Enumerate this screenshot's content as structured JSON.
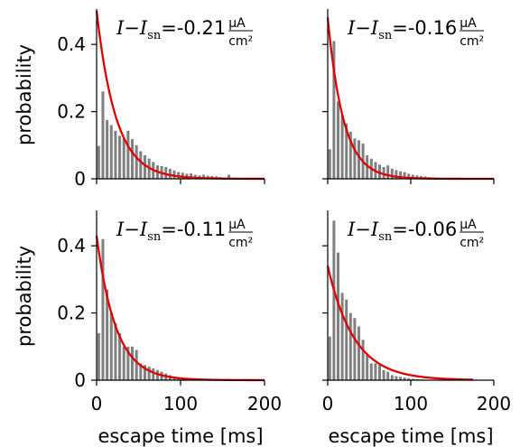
{
  "chart_data": [
    {
      "type": "bar",
      "annotation": {
        "symbol": "I",
        "minus": "−",
        "symbol2": "I",
        "subscript": "sn",
        "value": "=-0.21",
        "unit_num": "μA",
        "unit_den": "cm²"
      },
      "xlabel": "",
      "ylabel": "probability",
      "xlim": [
        0,
        200
      ],
      "ylim": [
        0,
        0.5
      ],
      "xticks": [
        0,
        100,
        200
      ],
      "yticks": [
        0,
        0.2,
        0.4
      ],
      "xticklabels": [
        "",
        "",
        ""
      ],
      "yticklabels": [
        "0",
        "0.2",
        "0.4"
      ],
      "bin_width": 5,
      "bars": [
        0.098,
        0.26,
        0.175,
        0.16,
        0.143,
        0.128,
        0.12,
        0.143,
        0.118,
        0.1,
        0.082,
        0.07,
        0.06,
        0.05,
        0.04,
        0.038,
        0.035,
        0.03,
        0.025,
        0.02,
        0.018,
        0.015,
        0.016,
        0.012,
        0.01,
        0.012,
        0.009,
        0.008,
        0.007,
        0.005,
        0.004,
        0.012,
        0.003,
        0.002,
        0.002,
        0.001,
        0.001,
        0.001
      ],
      "fit": {
        "amplitude": 0.5,
        "tau": 23,
        "color": "#e00000"
      }
    },
    {
      "type": "bar",
      "annotation": {
        "symbol": "I",
        "minus": "−",
        "symbol2": "I",
        "subscript": "sn",
        "value": "=-0.16",
        "unit_num": "μA",
        "unit_den": "cm²"
      },
      "xlabel": "",
      "ylabel": "",
      "xlim": [
        0,
        200
      ],
      "ylim": [
        0,
        0.5
      ],
      "xticks": [
        0,
        100,
        200
      ],
      "yticks": [
        0,
        0.2,
        0.4
      ],
      "xticklabels": [
        "",
        "",
        ""
      ],
      "yticklabels": [
        "",
        "",
        ""
      ],
      "bin_width": 5,
      "bars": [
        0.088,
        0.41,
        0.23,
        0.19,
        0.165,
        0.14,
        0.12,
        0.115,
        0.105,
        0.07,
        0.06,
        0.05,
        0.042,
        0.035,
        0.04,
        0.03,
        0.026,
        0.022,
        0.02,
        0.015,
        0.012,
        0.01,
        0.008,
        0.007,
        0.005,
        0.004,
        0.003,
        0.002,
        0.001,
        0.001,
        0.001,
        0.001
      ],
      "fit": {
        "amplitude": 0.48,
        "tau": 19,
        "color": "#e00000"
      }
    },
    {
      "type": "bar",
      "annotation": {
        "symbol": "I",
        "minus": "−",
        "symbol2": "I",
        "subscript": "sn",
        "value": "=-0.11",
        "unit_num": "μA",
        "unit_den": "cm²"
      },
      "xlabel": "escape time [ms]",
      "ylabel": "probability",
      "xlim": [
        0,
        200
      ],
      "ylim": [
        0,
        0.5
      ],
      "xticks": [
        0,
        100,
        200
      ],
      "yticks": [
        0,
        0.2,
        0.4
      ],
      "xticklabels": [
        "0",
        "100",
        "200"
      ],
      "yticklabels": [
        "0",
        "0.2",
        "0.4"
      ],
      "bin_width": 5,
      "bars": [
        0.14,
        0.42,
        0.27,
        0.2,
        0.17,
        0.14,
        0.1,
        0.1,
        0.1,
        0.09,
        0.05,
        0.045,
        0.04,
        0.035,
        0.03,
        0.025,
        0.02,
        0.015,
        0.01,
        0.008,
        0.006,
        0.005,
        0.004,
        0.003,
        0.002,
        0.002,
        0.001,
        0.001
      ],
      "fit": {
        "amplitude": 0.43,
        "tau": 23,
        "color": "#e00000"
      }
    },
    {
      "type": "bar",
      "annotation": {
        "symbol": "I",
        "minus": "−",
        "symbol2": "I",
        "subscript": "sn",
        "value": "=-0.06",
        "unit_num": "μA",
        "unit_den": "cm²"
      },
      "xlabel": "escape time [ms]",
      "ylabel": "",
      "xlim": [
        0,
        200
      ],
      "ylim": [
        0,
        0.5
      ],
      "xticks": [
        0,
        100,
        200
      ],
      "yticks": [
        0,
        0.2,
        0.4
      ],
      "xticklabels": [
        "0",
        "100",
        "200"
      ],
      "yticklabels": [
        "",
        "",
        ""
      ],
      "bin_width": 5,
      "bars": [
        0.13,
        0.475,
        0.38,
        0.26,
        0.24,
        0.2,
        0.185,
        0.16,
        0.12,
        0.075,
        0.05,
        0.05,
        0.045,
        0.03,
        0.025,
        0.015,
        0.012,
        0.01,
        0.008,
        0.006,
        0.004,
        0.003,
        0.002,
        0.001
      ],
      "fit": {
        "amplitude": 0.34,
        "tau": 32,
        "xmax": 175,
        "color": "#e00000"
      }
    }
  ],
  "colors": {
    "bar": "#808080",
    "axis": "#000000"
  }
}
